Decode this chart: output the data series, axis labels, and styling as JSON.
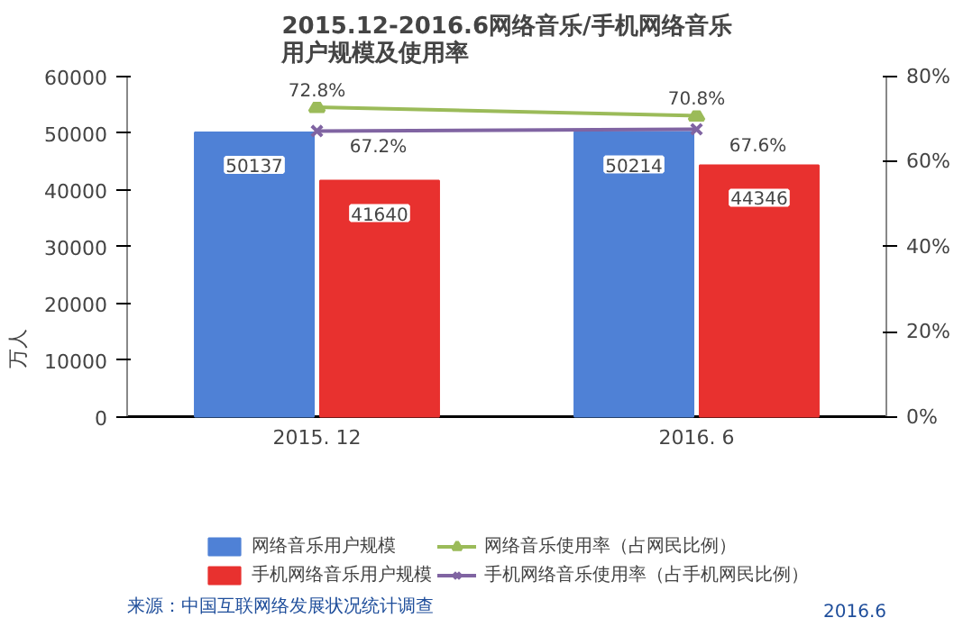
{
  "chart_data": {
    "type": "bar",
    "title": "2015.12-2016.6网络音乐/手机网络音乐用户规模及使用率",
    "ylabel": "万人",
    "categories": [
      "2015. 12",
      "2016. 6"
    ],
    "series": [
      {
        "name": "网络音乐用户规模",
        "color": "#4f81d6",
        "values": [
          50137,
          50214
        ],
        "value_labels": [
          "50137",
          "50214"
        ]
      },
      {
        "name": "手机网络音乐用户规模",
        "color": "#e8312f",
        "values": [
          41640,
          44346
        ],
        "value_labels": [
          "41640",
          "44346"
        ]
      },
      {
        "name": "网络音乐使用率（占网民比例）",
        "type": "line",
        "axis": "y2",
        "color": "#9bbb59",
        "marker": "triangle",
        "values": [
          72.8,
          70.8
        ],
        "value_labels": [
          "72.8%",
          "70.8%"
        ]
      },
      {
        "name": "手机网络音乐使用率（占手机网民比例）",
        "type": "line",
        "axis": "y2",
        "color": "#8064a2",
        "marker": "cross",
        "values": [
          67.2,
          67.6
        ],
        "value_labels": [
          "67.2%",
          "67.6%"
        ]
      }
    ],
    "ylim": [
      0,
      60000
    ],
    "yticks": [
      0,
      10000,
      20000,
      30000,
      40000,
      50000,
      60000
    ],
    "y2lim": [
      0,
      80
    ],
    "y2ticks": [
      {
        "value": 0,
        "label": "0%"
      },
      {
        "value": 20,
        "label": "20%"
      },
      {
        "value": 40,
        "label": "40%"
      },
      {
        "value": 60,
        "label": "60%"
      },
      {
        "value": 80,
        "label": "80%"
      }
    ],
    "grid": false,
    "legend": "bottom",
    "annotations": [
      "来源：中国互联网络发展状况统计调查",
      "2016.6"
    ]
  }
}
